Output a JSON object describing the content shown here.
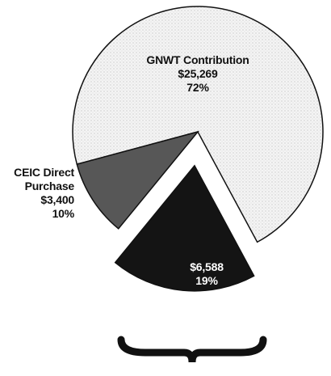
{
  "chart_data": {
    "type": "pie",
    "categories": [
      "GNWT Contribution",
      null,
      "CEIC Direct Purchase"
    ],
    "values": [
      72,
      19,
      10
    ],
    "value_labels": [
      "72%",
      "19%",
      "10%"
    ],
    "amounts": [
      "$25,269",
      "$6,588",
      "$3,400"
    ],
    "colors": [
      "#eeeeee",
      "#141414",
      "#575757"
    ],
    "explode": [
      false,
      true,
      false
    ]
  }
}
